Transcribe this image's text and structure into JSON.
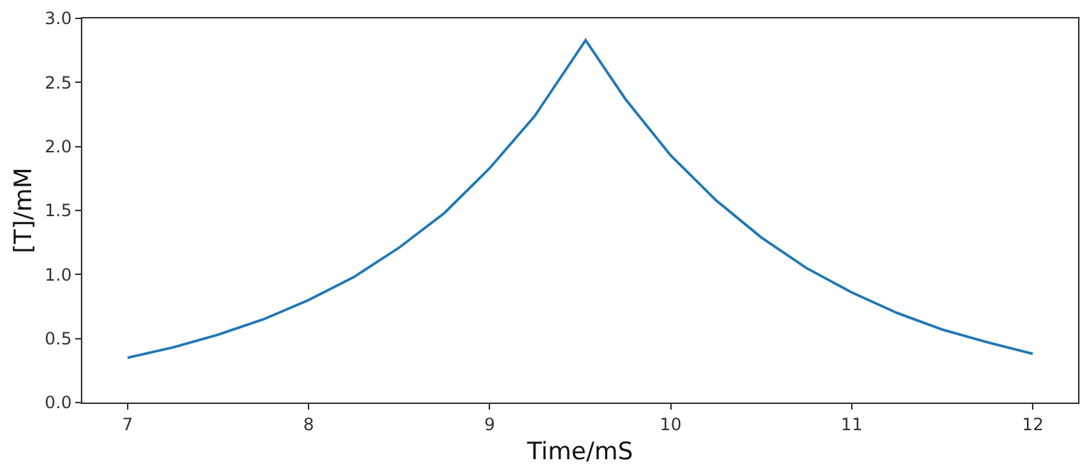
{
  "chart_data": {
    "type": "line",
    "xlabel": "Time/mS",
    "ylabel": "[T]/mM",
    "x": [
      7,
      7.25,
      7.5,
      7.75,
      8,
      8.25,
      8.5,
      8.75,
      9,
      9.25,
      9.53,
      9.75,
      10,
      10.25,
      10.5,
      10.75,
      11,
      11.25,
      11.5,
      11.75,
      12
    ],
    "series": [
      {
        "color": "#1f77b4",
        "values": [
          0.35,
          0.43,
          0.53,
          0.65,
          0.8,
          0.98,
          1.21,
          1.48,
          1.83,
          2.24,
          2.83,
          2.37,
          1.93,
          1.58,
          1.29,
          1.05,
          0.86,
          0.7,
          0.57,
          0.47,
          0.38
        ]
      }
    ],
    "xlim": [
      6.75,
      12.25
    ],
    "xticks": [
      7,
      8,
      9,
      10,
      11,
      12
    ],
    "ylim": [
      0,
      3
    ],
    "yticks": [
      {
        "value": 0,
        "label": "0.0"
      },
      {
        "value": 0.5,
        "label": "0.5"
      },
      {
        "value": 1,
        "label": "1.0"
      },
      {
        "value": 1.5,
        "label": "1.5"
      },
      {
        "value": 2,
        "label": "2.0"
      },
      {
        "value": 2.5,
        "label": "2.5"
      },
      {
        "value": 3,
        "label": "3.0"
      }
    ]
  }
}
